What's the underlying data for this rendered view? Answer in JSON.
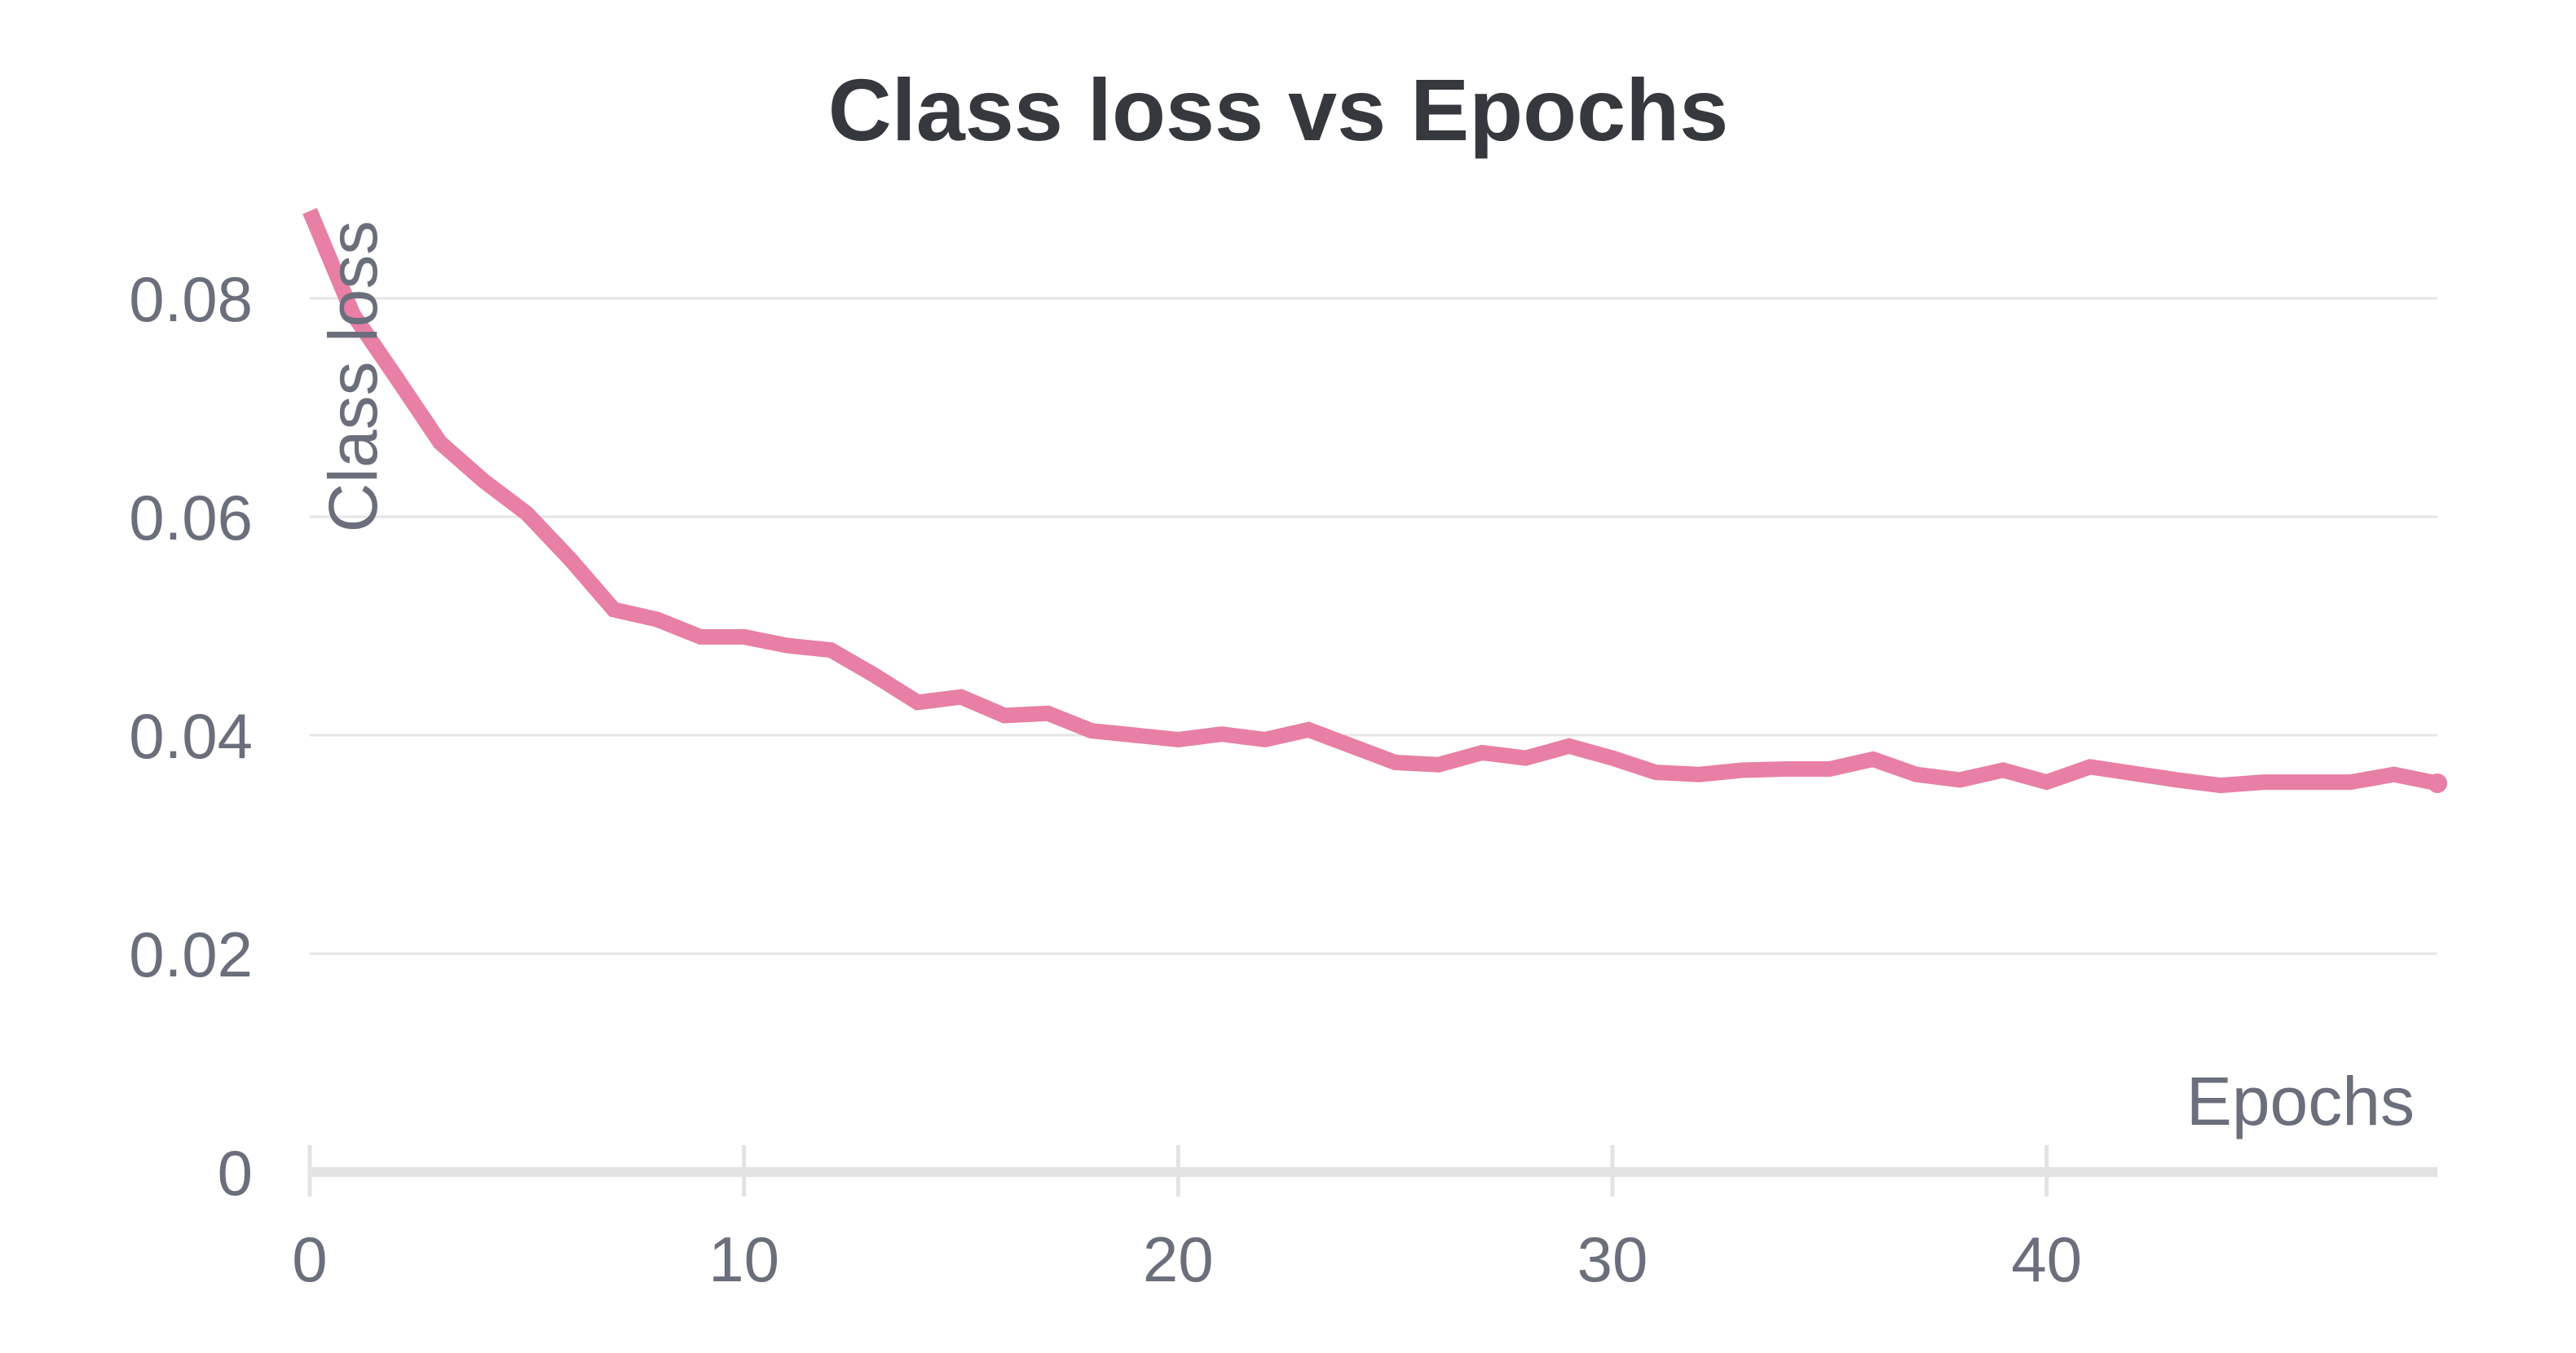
{
  "chart_data": {
    "type": "line",
    "title": "Class loss vs Epochs",
    "xlabel": "Epochs",
    "ylabel": "Class loss",
    "xlim": [
      0,
      49
    ],
    "ylim": [
      0,
      0.088
    ],
    "x_ticks": [
      "0",
      "10",
      "20",
      "30",
      "40"
    ],
    "x_tick_values": [
      0,
      10,
      20,
      30,
      40
    ],
    "y_ticks": [
      "0",
      "0.02",
      "0.04",
      "0.06",
      "0.08"
    ],
    "y_tick_values": [
      0,
      0.02,
      0.04,
      0.06,
      0.08
    ],
    "grid": true,
    "series": [
      {
        "color": "#e87fa4",
        "x": [
          0,
          1,
          2,
          3,
          4,
          5,
          6,
          7,
          8,
          9,
          10,
          11,
          12,
          13,
          14,
          15,
          16,
          17,
          18,
          19,
          20,
          21,
          22,
          23,
          24,
          25,
          26,
          27,
          28,
          29,
          30,
          31,
          32,
          33,
          34,
          35,
          36,
          37,
          38,
          39,
          40,
          41,
          42,
          43,
          44,
          45,
          46,
          47,
          48,
          49
        ],
        "values": [
          0.088,
          0.0785,
          0.0727,
          0.0668,
          0.0633,
          0.0603,
          0.0561,
          0.0515,
          0.0506,
          0.049,
          0.049,
          0.0482,
          0.0478,
          0.0455,
          0.043,
          0.0435,
          0.0418,
          0.042,
          0.0404,
          0.04,
          0.0396,
          0.0401,
          0.0396,
          0.0405,
          0.039,
          0.0375,
          0.0373,
          0.0384,
          0.0379,
          0.039,
          0.0379,
          0.0366,
          0.0364,
          0.0368,
          0.0369,
          0.0369,
          0.0378,
          0.0364,
          0.0359,
          0.0368,
          0.0357,
          0.0371,
          0.0365,
          0.0359,
          0.0354,
          0.0357,
          0.0357,
          0.0357,
          0.0364,
          0.0356
        ]
      }
    ]
  }
}
